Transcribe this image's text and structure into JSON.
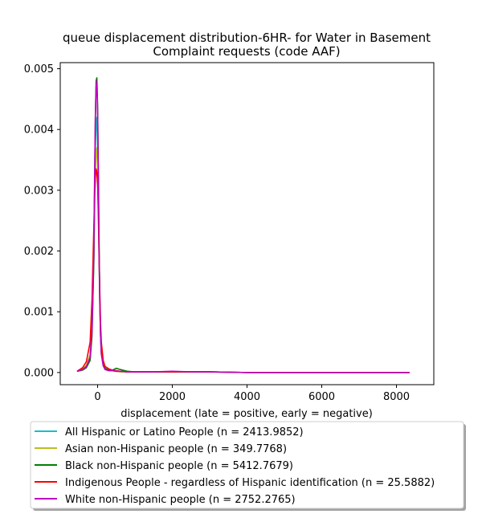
{
  "chart_data": {
    "type": "line",
    "title_lines": [
      "queue displacement distribution-6HR-  for Water in Basement",
      "Complaint  requests (code AAF)"
    ],
    "xlabel": "displacement (late = positive, early = negative)",
    "ylabel": "",
    "xlim": [
      -1000,
      9000
    ],
    "ylim": [
      -0.0002,
      0.0051
    ],
    "xticks": [
      0,
      2000,
      4000,
      6000,
      8000
    ],
    "xtick_labels": [
      "0",
      "2000",
      "4000",
      "6000",
      "8000"
    ],
    "yticks": [
      0.0,
      0.001,
      0.002,
      0.003,
      0.004,
      0.005
    ],
    "ytick_labels": [
      "0.000",
      "0.001",
      "0.002",
      "0.003",
      "0.004",
      "0.005"
    ],
    "grid": false,
    "legend_position": "below plot",
    "series": [
      {
        "name": "All Hispanic or Latino People (n = 2413.9852)",
        "color": "#17becf",
        "x": [
          -550,
          -400,
          -300,
          -200,
          -150,
          -100,
          -80,
          -60,
          -40,
          -20,
          0,
          20,
          40,
          60,
          80,
          100,
          150,
          200,
          300,
          400,
          500,
          600,
          800,
          1000,
          1500,
          2000,
          2500,
          3000,
          4000,
          5000,
          6000,
          7000,
          8350
        ],
        "y": [
          2e-05,
          5e-05,
          0.0001,
          0.00025,
          0.0007,
          0.0018,
          0.0028,
          0.0037,
          0.0041,
          0.0042,
          0.0038,
          0.0029,
          0.0019,
          0.0011,
          0.0006,
          0.00035,
          0.00012,
          6e-05,
          3e-05,
          3e-05,
          2e-05,
          2e-05,
          1e-05,
          1e-05,
          1e-05,
          1e-05,
          1e-05,
          1e-05,
          0.0,
          0.0,
          0.0,
          0.0,
          0.0
        ]
      },
      {
        "name": "Asian non-Hispanic people (n = 349.7768)",
        "color": "#bcbd22",
        "x": [
          -550,
          -400,
          -300,
          -200,
          -150,
          -100,
          -80,
          -60,
          -40,
          -20,
          0,
          20,
          40,
          60,
          80,
          100,
          150,
          200,
          300,
          400,
          500,
          600,
          800,
          1000,
          1500,
          2000,
          2500,
          3000,
          4000,
          5000,
          6000,
          7000,
          8350
        ],
        "y": [
          2e-05,
          6e-05,
          0.00012,
          0.0003,
          0.0008,
          0.0019,
          0.0027,
          0.0033,
          0.0036,
          0.0037,
          0.0034,
          0.0027,
          0.0018,
          0.0011,
          0.0006,
          0.00036,
          0.00013,
          6e-05,
          3e-05,
          3e-05,
          2e-05,
          1e-05,
          1e-05,
          1e-05,
          1e-05,
          1e-05,
          1e-05,
          1e-05,
          0.0,
          0.0,
          0.0,
          0.0,
          0.0
        ]
      },
      {
        "name": "Black non-Hispanic people (n = 5412.7679)",
        "color": "#008000",
        "x": [
          -550,
          -400,
          -300,
          -200,
          -150,
          -100,
          -80,
          -60,
          -40,
          -20,
          0,
          20,
          40,
          60,
          80,
          100,
          150,
          200,
          300,
          400,
          500,
          600,
          800,
          1000,
          1500,
          2000,
          2500,
          3000,
          4000,
          5000,
          6000,
          7000,
          8350
        ],
        "y": [
          2e-05,
          4e-05,
          8e-05,
          0.0002,
          0.0006,
          0.0019,
          0.0031,
          0.0042,
          0.0048,
          0.00485,
          0.0044,
          0.0033,
          0.0021,
          0.0012,
          0.0006,
          0.00032,
          0.00012,
          7e-05,
          4e-05,
          4e-05,
          7e-05,
          5e-05,
          2e-05,
          1e-05,
          1e-05,
          1e-05,
          1e-05,
          1e-05,
          0.0,
          0.0,
          0.0,
          0.0,
          0.0
        ]
      },
      {
        "name": "Indigenous People - regardless of Hispanic identification (n = 25.5882)",
        "color": "#ff0000",
        "x": [
          -550,
          -400,
          -300,
          -200,
          -150,
          -100,
          -80,
          -60,
          -40,
          -20,
          0,
          20,
          40,
          60,
          80,
          100,
          150,
          200,
          300,
          400,
          500,
          600,
          800,
          1000,
          1500,
          2000,
          2500,
          3000,
          4000,
          5000,
          6000,
          7000,
          8350
        ],
        "y": [
          2e-05,
          8e-05,
          0.00018,
          0.0005,
          0.0012,
          0.0024,
          0.0029,
          0.0032,
          0.00335,
          0.0033,
          0.0031,
          0.0026,
          0.0019,
          0.0013,
          0.0008,
          0.0005,
          0.0002,
          0.0001,
          6e-05,
          4e-05,
          3e-05,
          2e-05,
          1e-05,
          1e-05,
          1e-05,
          1e-05,
          1e-05,
          1e-05,
          0.0,
          0.0,
          0.0,
          0.0,
          0.0
        ]
      },
      {
        "name": "White non-Hispanic people (n = 2752.2765)",
        "color": "#bf00bf",
        "x": [
          -550,
          -400,
          -300,
          -200,
          -150,
          -100,
          -80,
          -60,
          -40,
          -20,
          0,
          20,
          40,
          60,
          80,
          100,
          150,
          200,
          300,
          400,
          500,
          600,
          800,
          1000,
          1500,
          2000,
          2500,
          3000,
          4000,
          5000,
          6000,
          7000,
          8350
        ],
        "y": [
          2e-05,
          5e-05,
          0.0001,
          0.00025,
          0.0007,
          0.002,
          0.0032,
          0.0042,
          0.0047,
          0.0048,
          0.0043,
          0.0032,
          0.002,
          0.0011,
          0.0006,
          0.0003,
          0.00011,
          5e-05,
          3e-05,
          3e-05,
          2e-05,
          2e-05,
          1e-05,
          1e-05,
          1e-05,
          2e-05,
          1e-05,
          1e-05,
          0.0,
          0.0,
          0.0,
          0.0,
          0.0
        ]
      }
    ]
  }
}
